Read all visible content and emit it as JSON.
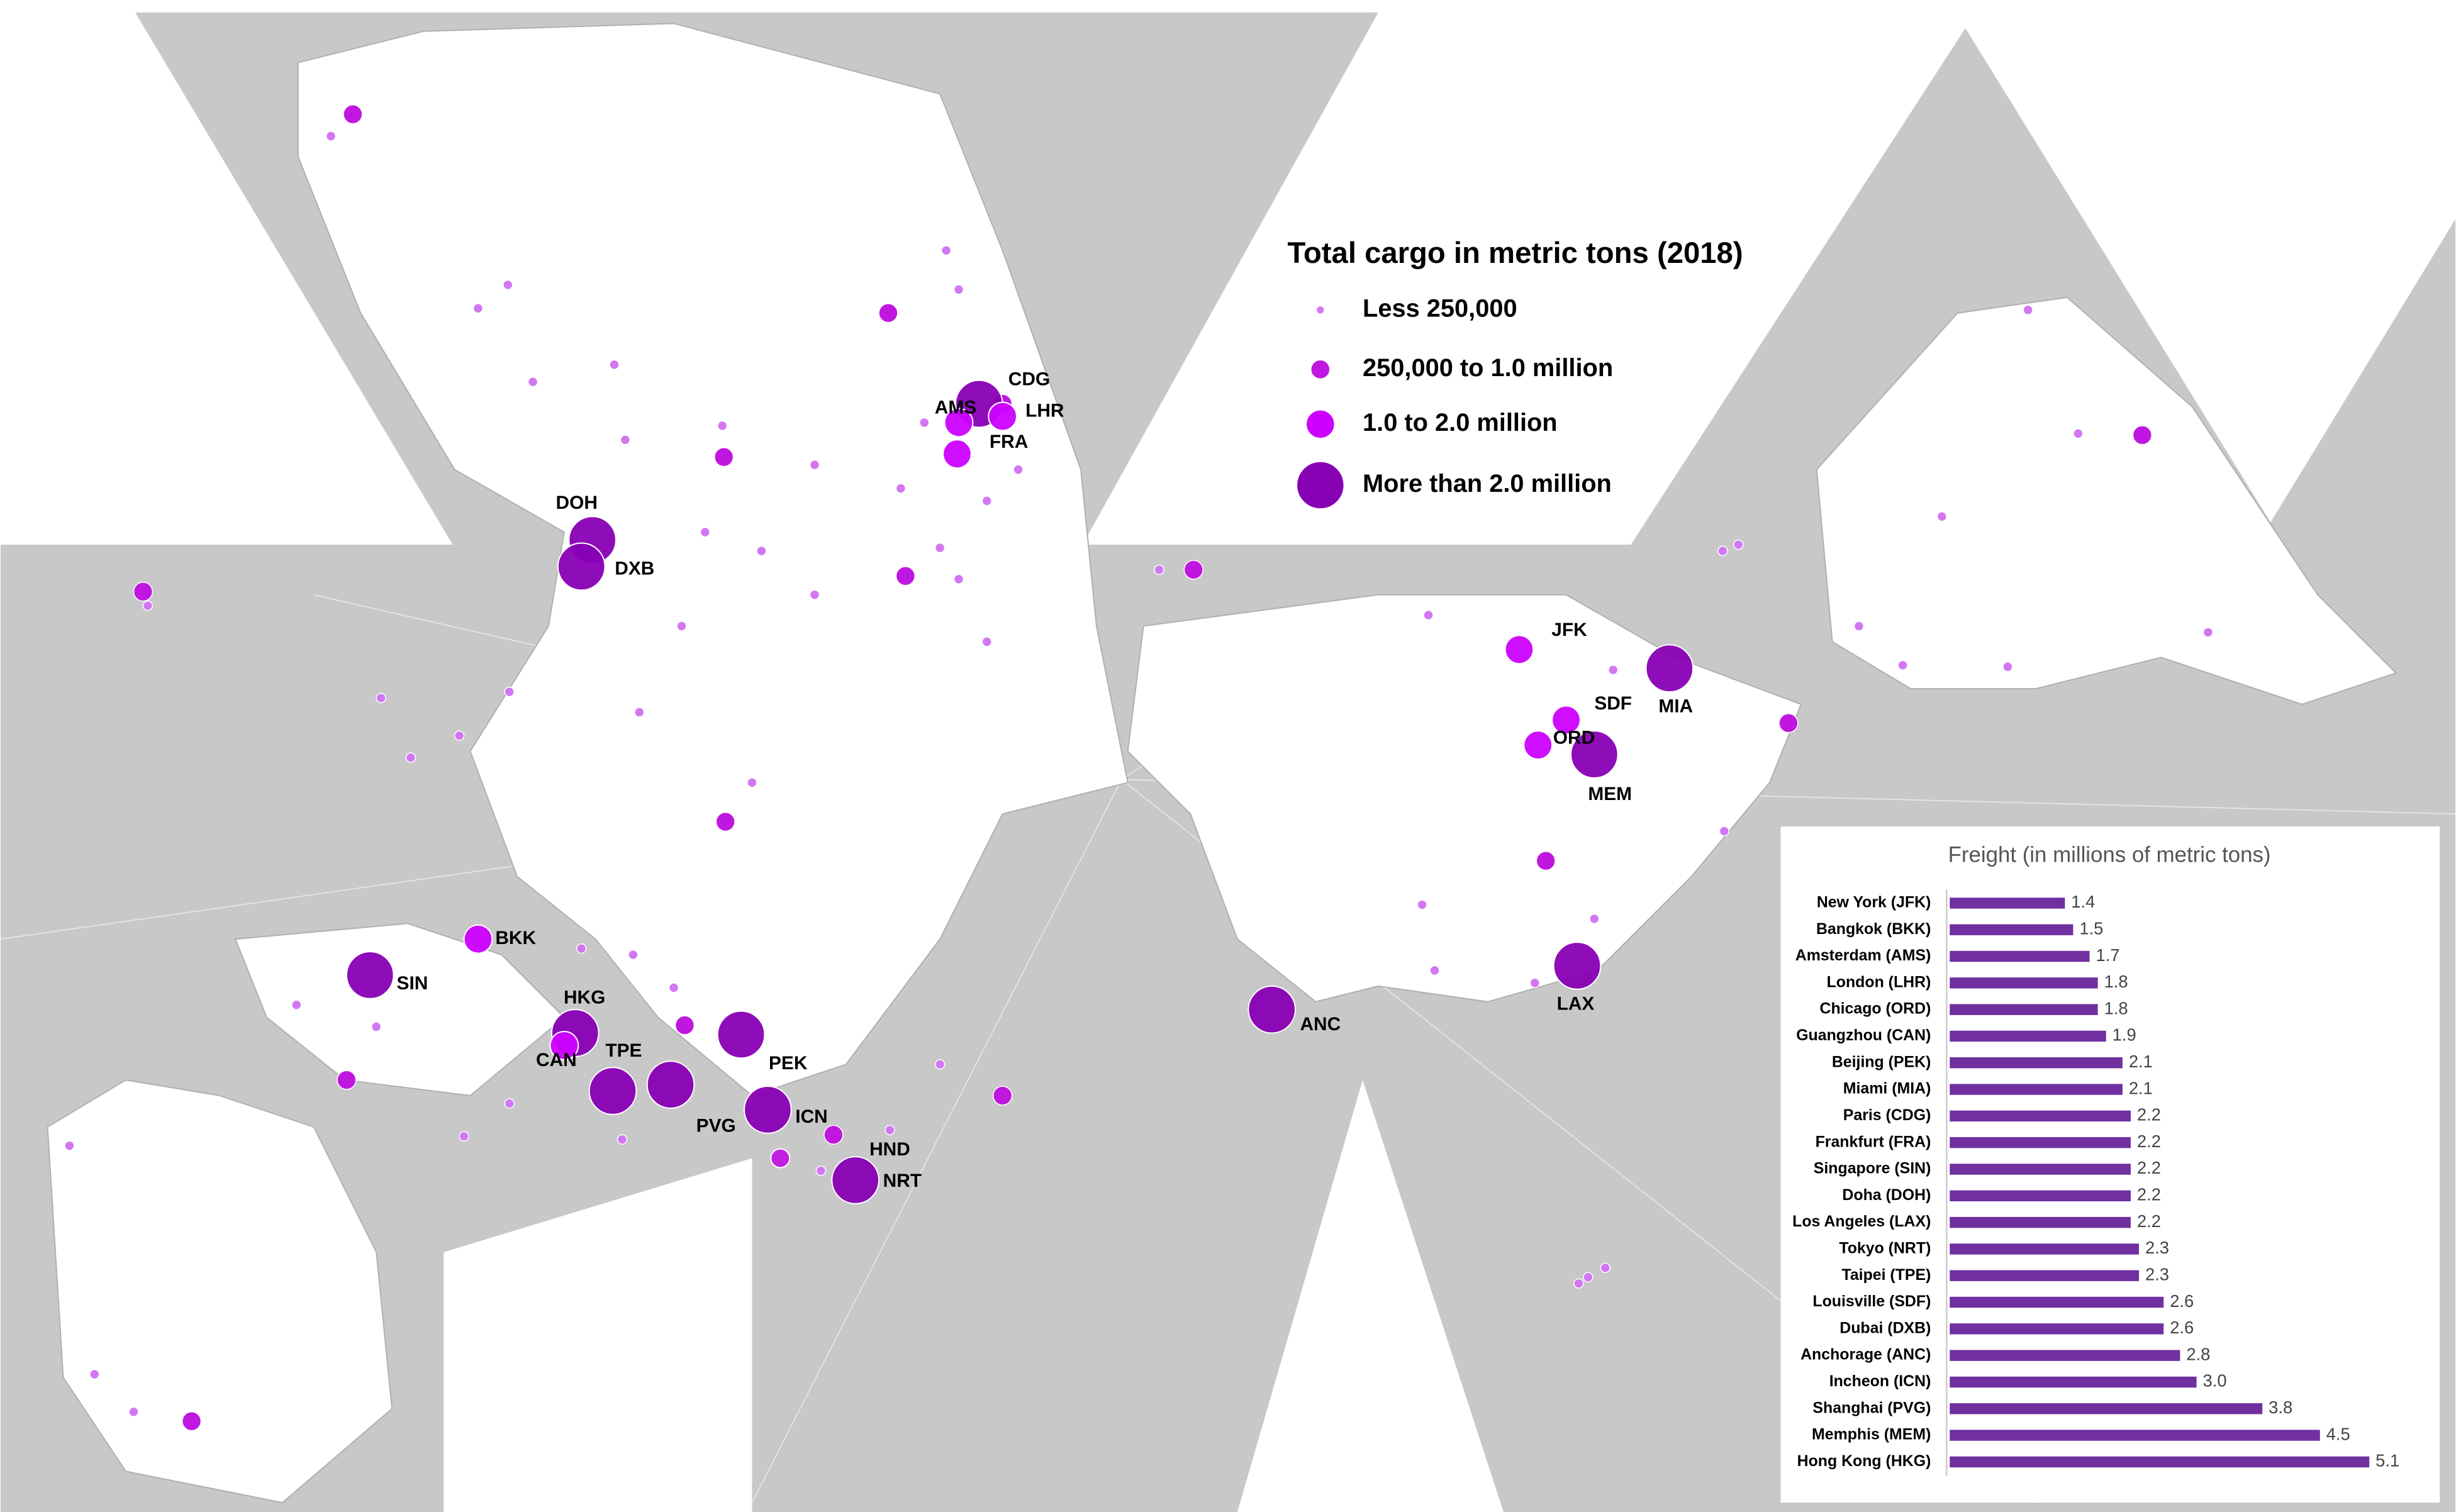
{
  "legend": {
    "title": "Total cargo in metric tons (2018)",
    "items": [
      {
        "label": "Less 250,000",
        "color": "#d277f2"
      },
      {
        "label": "250,000 to 1.0 million",
        "color": "#c017e0"
      },
      {
        "label": "1.0 to 2.0 million",
        "color": "#cc00ff"
      },
      {
        "label": "More than 2.0 million",
        "color": "#8800b4"
      }
    ]
  },
  "airports": [
    "DOH",
    "DXB",
    "CDG",
    "AMS",
    "LHR",
    "FRA",
    "JFK",
    "SDF",
    "MIA",
    "ORD",
    "MEM",
    "LAX",
    "ANC",
    "BKK",
    "SIN",
    "HKG",
    "CAN",
    "TPE",
    "PEK",
    "PVG",
    "ICN",
    "HND",
    "NRT"
  ],
  "chart_data": {
    "type": "bar",
    "orientation": "horizontal",
    "title": "Freight (in millions of metric tons)",
    "categories": [
      "New York (JFK)",
      "Bangkok (BKK)",
      "Amsterdam (AMS)",
      "London (LHR)",
      "Chicago (ORD)",
      "Guangzhou (CAN)",
      "Beijing (PEK)",
      "Miami (MIA)",
      "Paris (CDG)",
      "Frankfurt (FRA)",
      "Singapore (SIN)",
      "Doha (DOH)",
      "Los Angeles (LAX)",
      "Tokyo (NRT)",
      "Taipei (TPE)",
      "Louisville (SDF)",
      "Dubai (DXB)",
      "Anchorage (ANC)",
      "Incheon (ICN)",
      "Shanghai (PVG)",
      "Memphis (MEM)",
      "Hong Kong (HKG)"
    ],
    "values": [
      1.4,
      1.5,
      1.7,
      1.8,
      1.8,
      1.9,
      2.1,
      2.1,
      2.2,
      2.2,
      2.2,
      2.2,
      2.2,
      2.3,
      2.3,
      2.6,
      2.6,
      2.8,
      3.0,
      3.8,
      4.5,
      5.1
    ],
    "value_labels": [
      "1.4",
      "1.5",
      "1.7",
      "1.8",
      "1.8",
      "1.9",
      "2.1",
      "2.1",
      "2.2",
      "2.2",
      "2.2",
      "2.2",
      "2.2",
      "2.3",
      "2.3",
      "2.6",
      "2.6",
      "2.8",
      "3.0",
      "3.8",
      "4.5",
      "5.1"
    ],
    "color": "#7030a0"
  }
}
